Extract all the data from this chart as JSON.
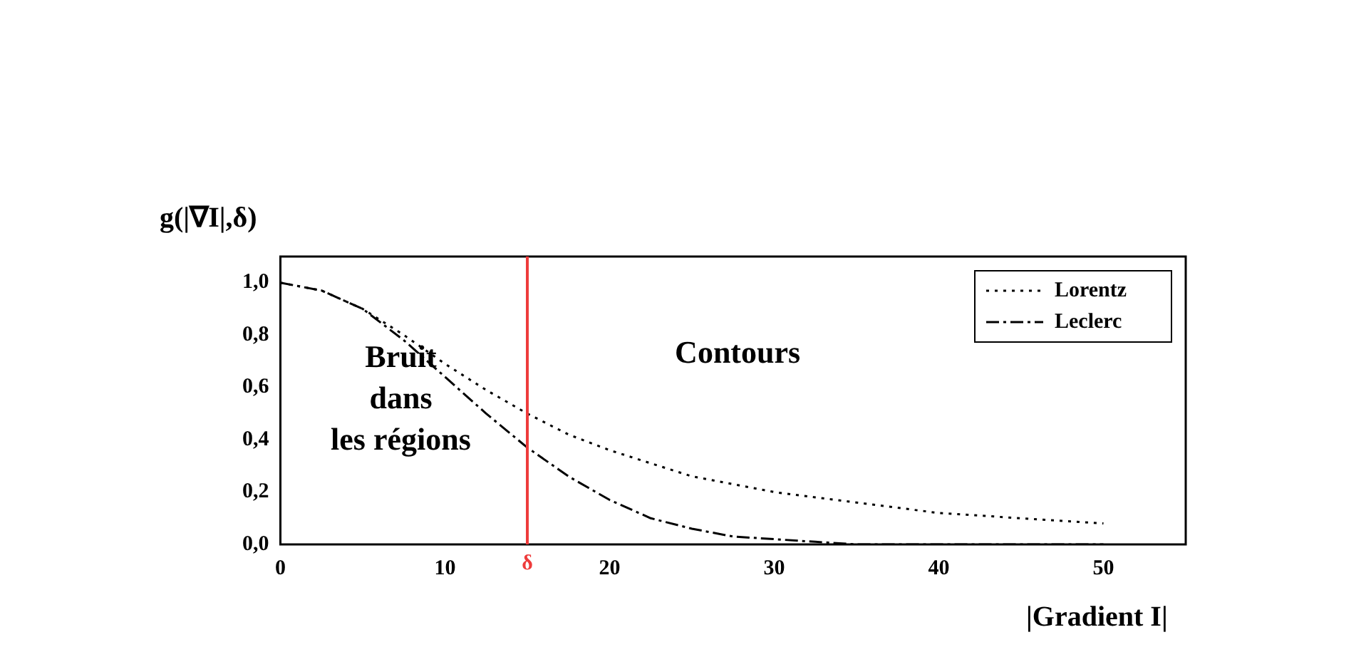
{
  "chart_data": {
    "type": "line",
    "ylabel": "g(|∇I|,δ)",
    "xlabel": "|Gradient I|",
    "x": [
      0,
      2.5,
      5,
      7.5,
      10,
      12.5,
      15,
      17.5,
      20,
      22.5,
      25,
      27.5,
      30,
      32.5,
      35,
      37.5,
      40,
      42.5,
      45,
      47.5,
      50
    ],
    "series": [
      {
        "name": "Lorentz",
        "color": "#000000",
        "line_style": "dotted",
        "values": [
          1,
          0.97,
          0.9,
          0.8,
          0.69,
          0.59,
          0.5,
          0.42,
          0.36,
          0.31,
          0.26,
          0.23,
          0.2,
          0.18,
          0.16,
          0.14,
          0.12,
          0.11,
          0.1,
          0.09,
          0.08
        ]
      },
      {
        "name": "Leclerc",
        "color": "#000000",
        "line_style": "dashed",
        "values": [
          1,
          0.97,
          0.9,
          0.78,
          0.64,
          0.5,
          0.37,
          0.26,
          0.17,
          0.1,
          0.06,
          0.03,
          0.02,
          0.01,
          0,
          0,
          0,
          0,
          0,
          0,
          0
        ]
      }
    ],
    "xlim": [
      0,
      55
    ],
    "xticks": [
      0,
      10,
      20,
      30,
      40,
      50
    ],
    "ylim": [
      0,
      1.1
    ],
    "yticks": [
      {
        "value": 0,
        "label": "0,0"
      },
      {
        "value": 0.2,
        "label": "0,2"
      },
      {
        "value": 0.4,
        "label": "0,4"
      },
      {
        "value": 0.6,
        "label": "0,6"
      },
      {
        "value": 0.8,
        "label": "0,8"
      },
      {
        "value": 1,
        "label": "1,0"
      }
    ],
    "ref_lines": [
      {
        "axis": "x",
        "value": 15,
        "label": "δ",
        "color": "#ee3b3b"
      }
    ],
    "annotations": [
      "Bruit\ndans\nles régions",
      "Contours"
    ],
    "legend": "top right",
    "grid": false,
    "marker": "none"
  }
}
